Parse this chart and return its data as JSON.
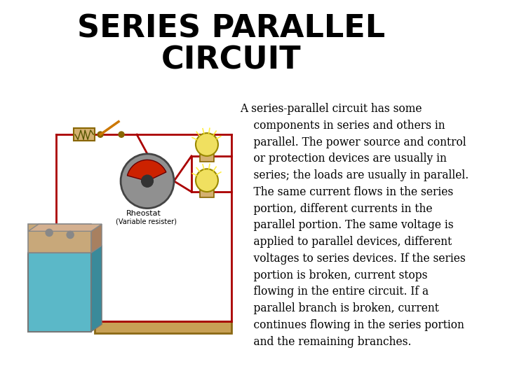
{
  "title_line1": "SERIES PARALLEL",
  "title_line2": "CIRCUIT",
  "title_fontsize": 32,
  "title_fontweight": "bold",
  "title_font": "DejaVu Sans",
  "title_color": "#000000",
  "body_text_lines": [
    "A series-parallel circuit has some",
    "    components in series and others in",
    "    parallel. The power source and control",
    "    or protection devices are usually in",
    "    series; the loads are usually in parallel.",
    "    The same current flows in the series",
    "    portion, different currents in the",
    "    parallel portion. The same voltage is",
    "    applied to parallel devices, different",
    "    voltages to series devices. If the series",
    "    portion is broken, current stops",
    "    flowing in the entire circuit. If a",
    "    parallel branch is broken, current",
    "    continues flowing in the series portion",
    "    and the remaining branches."
  ],
  "body_fontsize": 11.2,
  "body_font": "DejaVu Serif",
  "body_color": "#000000",
  "background_color": "#ffffff",
  "wire_color": "#AA0000",
  "battery_cyan": "#5BB8C8",
  "battery_tan": "#C8A87A",
  "plank_color": "#C8A055",
  "bulb_yellow": "#F0E060",
  "rheostat_gray": "#909090",
  "rheostat_red": "#CC2200"
}
